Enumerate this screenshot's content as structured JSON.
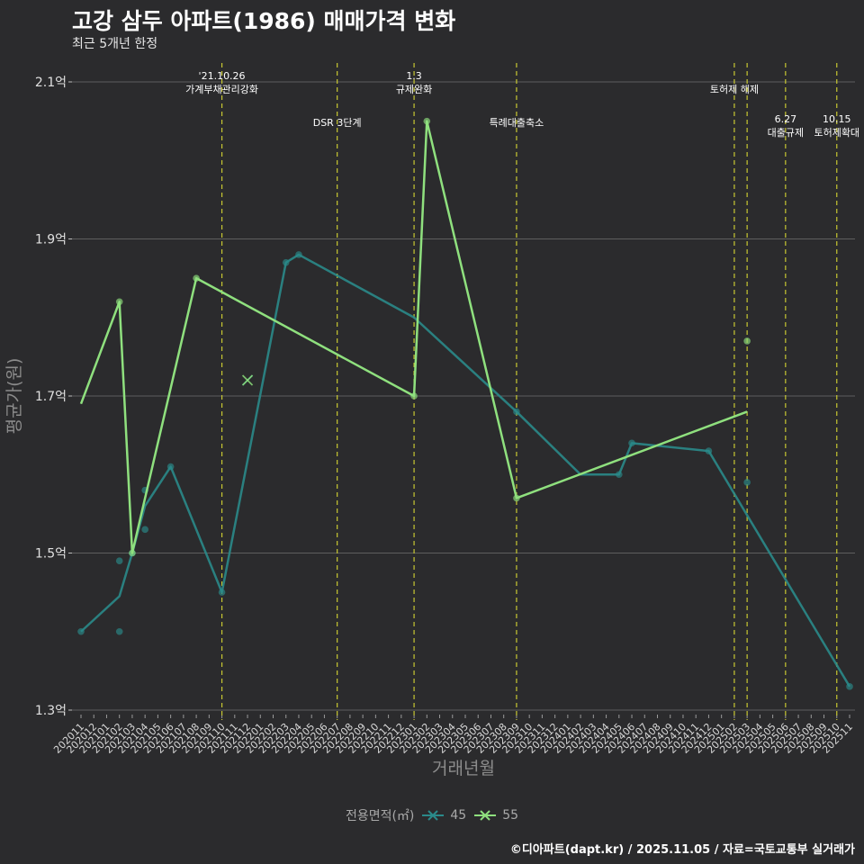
{
  "title": "고강 삼두 아파트(1986) 매매가격 변화",
  "subtitle": "최근 5개년 한정",
  "caption": "©디아파트(dapt.kr) / 2025.11.05 / 자료=국토교통부 실거래가",
  "colors": {
    "background": "#2b2b2d",
    "grid": "#5e5e5e",
    "series_45": "#2a8a8a",
    "series_55": "#8fe07e",
    "event_line": "#c8c832"
  },
  "chart_data": {
    "type": "line",
    "title": "고강 삼두 아파트(1986) 매매가격 변화",
    "subtitle": "최근 5개년 한정",
    "xlabel": "거래년월",
    "ylabel": "평균가(원)",
    "ylim": [
      1.3,
      2.12
    ],
    "yticks": [
      1.3,
      1.5,
      1.7,
      1.9,
      2.1
    ],
    "ytick_labels": [
      "1.3억",
      "1.5억",
      "1.7억",
      "1.9억",
      "2.1억"
    ],
    "categories": [
      "202011",
      "202012",
      "202101",
      "202102",
      "202103",
      "202104",
      "202105",
      "202106",
      "202107",
      "202108",
      "202109",
      "202110",
      "202111",
      "202112",
      "202201",
      "202202",
      "202203",
      "202204",
      "202205",
      "202206",
      "202207",
      "202208",
      "202209",
      "202210",
      "202211",
      "202212",
      "202301",
      "202302",
      "202303",
      "202304",
      "202305",
      "202306",
      "202307",
      "202308",
      "202309",
      "202310",
      "202311",
      "202312",
      "202401",
      "202402",
      "202403",
      "202404",
      "202405",
      "202406",
      "202407",
      "202408",
      "202409",
      "202410",
      "202411",
      "202412",
      "202501",
      "202502",
      "202503",
      "202504",
      "202505",
      "202506",
      "202507",
      "202508",
      "202509",
      "202510",
      "202511"
    ],
    "legend_title": "전용면적(㎡)",
    "series": [
      {
        "name": "45",
        "line": [
          [
            "202011",
            1.4
          ],
          [
            "202102",
            1.445
          ],
          [
            "202103",
            1.5
          ],
          [
            "202104",
            1.56
          ],
          [
            "202106",
            1.61
          ],
          [
            "202110",
            1.45
          ],
          [
            "202203",
            1.87
          ],
          [
            "202204",
            1.88
          ],
          [
            "202301",
            1.8
          ],
          [
            "202309",
            1.68
          ],
          [
            "202402",
            1.6
          ],
          [
            "202405",
            1.6
          ],
          [
            "202406",
            1.64
          ],
          [
            "202412",
            1.63
          ],
          [
            "202511",
            1.33
          ]
        ],
        "points": [
          [
            "202011",
            1.4
          ],
          [
            "202102",
            1.4
          ],
          [
            "202102",
            1.49
          ],
          [
            "202103",
            1.5
          ],
          [
            "202104",
            1.53
          ],
          [
            "202104",
            1.58
          ],
          [
            "202106",
            1.61
          ],
          [
            "202110",
            1.45
          ],
          [
            "202203",
            1.87
          ],
          [
            "202204",
            1.88
          ],
          [
            "202309",
            1.68
          ],
          [
            "202405",
            1.6
          ],
          [
            "202406",
            1.64
          ],
          [
            "202412",
            1.63
          ],
          [
            "202503",
            1.59
          ],
          [
            "202511",
            1.33
          ]
        ]
      },
      {
        "name": "55",
        "line": [
          [
            "202011",
            1.69
          ],
          [
            "202102",
            1.82
          ],
          [
            "202103",
            1.5
          ],
          [
            "202108",
            1.85
          ],
          [
            "202301",
            1.7
          ],
          [
            "202302",
            2.05
          ],
          [
            "202309",
            1.57
          ],
          [
            "202503",
            1.68
          ]
        ],
        "points": [
          [
            "202102",
            1.82
          ],
          [
            "202103",
            1.5
          ],
          [
            "202108",
            1.85
          ],
          [
            "202301",
            1.7
          ],
          [
            "202302",
            2.05
          ],
          [
            "202309",
            1.57
          ],
          [
            "202503",
            1.77
          ]
        ]
      }
    ],
    "crosses": [
      {
        "series": "45",
        "x": "202112",
        "y": 1.72
      },
      {
        "series": "55",
        "x": "202112",
        "y": 1.72
      }
    ],
    "events": [
      {
        "x": "202110",
        "label_lines": [
          "'21.10.26",
          "가계부채관리강화"
        ],
        "level": 0
      },
      {
        "x": "202207",
        "label_lines": [
          "DSR 3단계"
        ],
        "level": 1
      },
      {
        "x": "202301",
        "label_lines": [
          "1.3",
          "규제완화"
        ],
        "level": 0
      },
      {
        "x": "202309",
        "label_lines": [
          "특례대출축소"
        ],
        "level": 1
      },
      {
        "x": "202502",
        "label_lines": [
          "토허제 해제"
        ],
        "level": 0
      },
      {
        "x": "202503",
        "label_lines": [],
        "level": 0
      },
      {
        "x": "202506",
        "label_lines": [
          "6.27",
          "대출규제"
        ],
        "level": 1
      },
      {
        "x": "202510",
        "label_lines": [
          "10.15",
          "토허제확대"
        ],
        "level": 1
      }
    ]
  }
}
